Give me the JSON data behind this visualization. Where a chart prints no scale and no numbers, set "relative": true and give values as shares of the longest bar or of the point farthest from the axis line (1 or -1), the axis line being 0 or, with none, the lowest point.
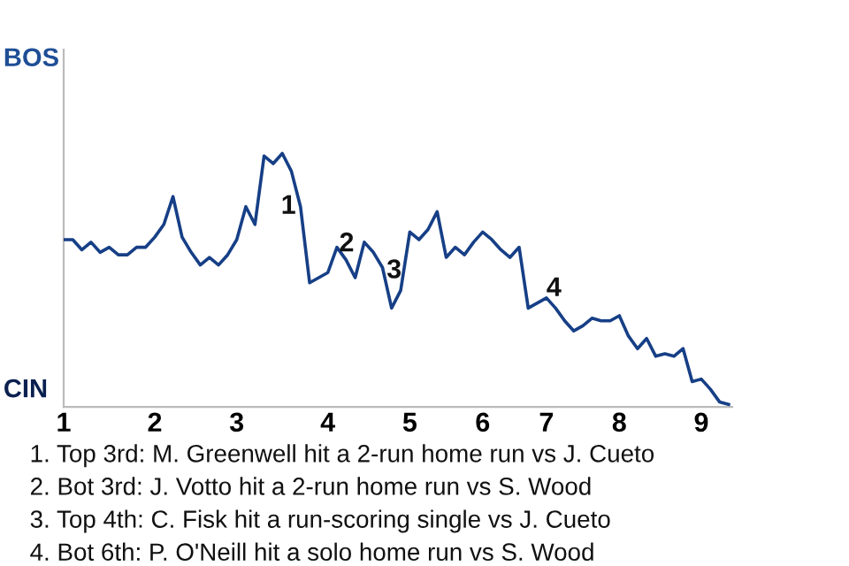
{
  "chart_data": {
    "type": "line",
    "relative": true,
    "categories": [
      "1",
      null,
      null,
      null,
      null,
      null,
      null,
      null,
      null,
      null,
      "2",
      null,
      null,
      null,
      null,
      null,
      null,
      null,
      null,
      "3",
      null,
      null,
      null,
      null,
      null,
      null,
      null,
      null,
      null,
      "4",
      null,
      null,
      null,
      null,
      null,
      null,
      null,
      null,
      "5",
      null,
      null,
      null,
      null,
      null,
      null,
      null,
      "6",
      null,
      null,
      null,
      null,
      null,
      null,
      "7",
      null,
      null,
      null,
      null,
      null,
      null,
      null,
      "8",
      null,
      null,
      null,
      null,
      null,
      null,
      null,
      null,
      "9",
      null,
      null,
      null
    ],
    "series": [
      {
        "color": "#163f86",
        "values": [
          0.66,
          0.66,
          0.62,
          0.65,
          0.61,
          0.63,
          0.6,
          0.6,
          0.63,
          0.63,
          0.67,
          0.72,
          0.83,
          0.67,
          0.61,
          0.56,
          0.59,
          0.56,
          0.6,
          0.66,
          0.79,
          0.72,
          0.99,
          0.96,
          1,
          0.93,
          0.79,
          0.49,
          0.51,
          0.53,
          0.63,
          0.58,
          0.51,
          0.65,
          0.61,
          0.55,
          0.39,
          0.46,
          0.69,
          0.66,
          0.7,
          0.77,
          0.59,
          0.63,
          0.6,
          0.65,
          0.69,
          0.66,
          0.62,
          0.59,
          0.63,
          0.39,
          0.41,
          0.43,
          0.39,
          0.34,
          0.3,
          0.32,
          0.35,
          0.34,
          0.34,
          0.36,
          0.28,
          0.23,
          0.27,
          0.2,
          0.21,
          0.2,
          0.23,
          0.1,
          0.11,
          0.07,
          0.02,
          0.01
        ]
      }
    ],
    "annotations": [
      "BOS",
      "CIN",
      "1",
      "2",
      "3",
      "4",
      "1. Top 3rd: M. Greenwell hit a 2-run home run vs J. Cueto",
      "2. Bot 3rd: J. Votto hit a 2-run home run vs S. Wood",
      "3. Top 4th: C. Fisk hit a run-scoring single vs J. Cueto",
      "4. Bot 6th: P. O'Neill hit a solo home run vs S. Wood"
    ],
    "legend": false,
    "line_style": "solid",
    "marker": "none"
  }
}
